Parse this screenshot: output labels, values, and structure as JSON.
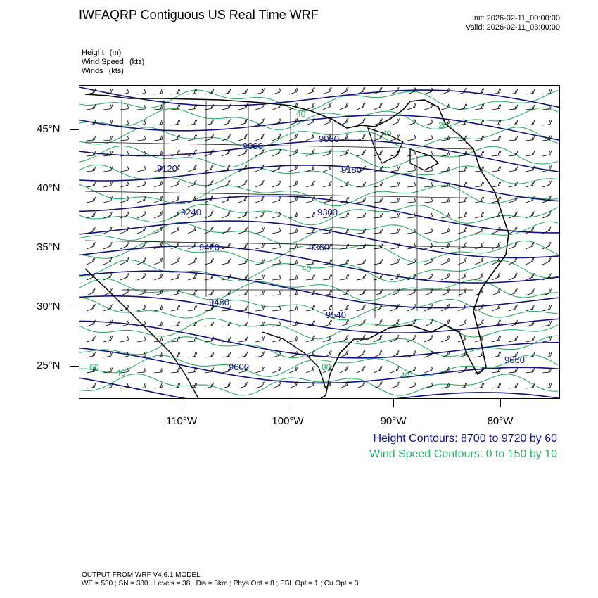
{
  "title": "IWFAQRP Contiguous US Real Time WRF",
  "init": "Init: 2026-02-11_00:00:00",
  "valid": "Valid: 2026-02-11_03:00:00",
  "variables": [
    {
      "name": "Height",
      "unit": "(m)"
    },
    {
      "name": "Wind Speed",
      "unit": "(kts)"
    },
    {
      "name": "Winds",
      "unit": "(kts)"
    }
  ],
  "lat_labels": [
    "45°N",
    "40°N",
    "35°N",
    "30°N",
    "25°N"
  ],
  "lon_labels": [
    "110°W",
    "100°W",
    "90°W",
    "80°W"
  ],
  "height_labels": [
    "9000",
    "9060",
    "9120",
    "9180",
    "9240",
    "9300",
    "9360",
    "9420",
    "9480",
    "9540",
    "9600",
    "9660"
  ],
  "wind_labels": [
    "40",
    "20",
    "60",
    "40",
    "80",
    "40",
    "40",
    "40"
  ],
  "colors": {
    "height": "#12127f",
    "wind": "#2fae6b",
    "coast": "#000000"
  },
  "height_legend": "Height Contours: 8700 to 9720 by 60",
  "wind_legend": "Wind Speed Contours: 0 to 150 by 10",
  "footer_line1": "OUTPUT FROM WRF V4.6.1 MODEL",
  "footer_line2": "WE = 580 ; SN = 380 ; Levels = 38 ; Dis = 8km ; Phys Opt = 8 ; PBL Opt = 1 ; Cu Opt = 3"
}
